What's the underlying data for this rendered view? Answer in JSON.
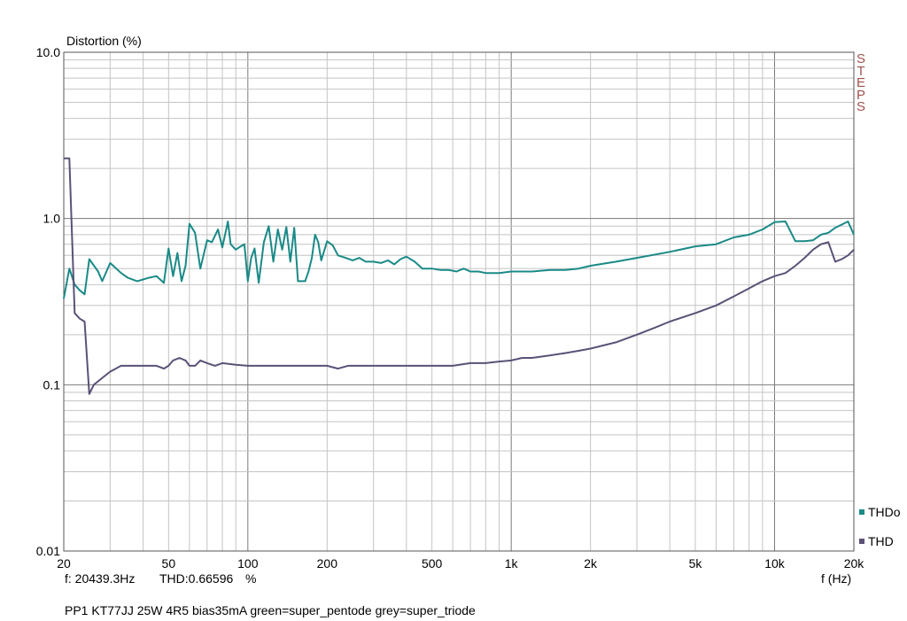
{
  "header": {
    "ylabel": "Distortion (%)"
  },
  "brand": {
    "text": "STEPS",
    "color": "#a0524d"
  },
  "readout": {
    "freq": "f: 20439.3Hz",
    "thd": "THD:0.66596",
    "unit": "%"
  },
  "caption": "PP1 KT77JJ 25W 4R5 bias35mA green=super_pentode grey=super_triode",
  "legend": [
    {
      "name": "THDo",
      "color": "#1a8a87"
    },
    {
      "name": "THD",
      "color": "#5b5177"
    }
  ],
  "chart_data": {
    "type": "line",
    "xlabel": "f (Hz)",
    "ylabel": "Distortion (%)",
    "xscale": "log",
    "yscale": "log",
    "xlim": [
      20,
      20000
    ],
    "ylim": [
      0.01,
      10
    ],
    "grid": true,
    "legend_position": "bottom-right",
    "x_ticks": [
      "20",
      "50",
      "100",
      "200",
      "500",
      "1k",
      "2k",
      "5k",
      "10k",
      "20k"
    ],
    "y_ticks": [
      "10.0",
      "1.0",
      "0.1",
      "0.01"
    ],
    "series": [
      {
        "name": "THDo",
        "color": "#1a8a87",
        "x": [
          20,
          21,
          22,
          23,
          24,
          25,
          27,
          28,
          30,
          33,
          35,
          38,
          40,
          42,
          45,
          48,
          50,
          52,
          54,
          56,
          58,
          60,
          63,
          66,
          70,
          73,
          77,
          80,
          84,
          86,
          90,
          94,
          97,
          100,
          103,
          106,
          110,
          115,
          120,
          125,
          130,
          135,
          140,
          145,
          150,
          155,
          160,
          165,
          170,
          175,
          180,
          185,
          190,
          200,
          210,
          220,
          235,
          250,
          265,
          280,
          300,
          320,
          340,
          360,
          380,
          400,
          430,
          460,
          500,
          540,
          580,
          620,
          660,
          700,
          750,
          800,
          900,
          1000,
          1100,
          1200,
          1400,
          1600,
          1800,
          2000,
          2500,
          3000,
          4000,
          5000,
          6000,
          7000,
          8000,
          9000,
          10000,
          11000,
          12000,
          13000,
          14000,
          15000,
          16000,
          17000,
          18000,
          19000,
          20000
        ],
        "values": [
          0.33,
          0.5,
          0.4,
          0.37,
          0.35,
          0.57,
          0.48,
          0.42,
          0.54,
          0.47,
          0.44,
          0.42,
          0.43,
          0.44,
          0.45,
          0.41,
          0.66,
          0.45,
          0.62,
          0.42,
          0.52,
          0.93,
          0.82,
          0.5,
          0.74,
          0.72,
          0.86,
          0.67,
          0.96,
          0.7,
          0.65,
          0.68,
          0.7,
          0.42,
          0.58,
          0.66,
          0.41,
          0.72,
          0.9,
          0.55,
          0.86,
          0.65,
          0.89,
          0.55,
          0.88,
          0.42,
          0.42,
          0.42,
          0.48,
          0.58,
          0.8,
          0.72,
          0.56,
          0.73,
          0.69,
          0.6,
          0.58,
          0.56,
          0.58,
          0.55,
          0.55,
          0.54,
          0.56,
          0.53,
          0.57,
          0.59,
          0.55,
          0.5,
          0.5,
          0.49,
          0.49,
          0.48,
          0.5,
          0.48,
          0.48,
          0.47,
          0.47,
          0.48,
          0.48,
          0.48,
          0.49,
          0.49,
          0.5,
          0.52,
          0.55,
          0.58,
          0.63,
          0.68,
          0.7,
          0.77,
          0.8,
          0.86,
          0.95,
          0.96,
          0.73,
          0.73,
          0.74,
          0.8,
          0.82,
          0.88,
          0.92,
          0.96,
          0.8
        ]
      },
      {
        "name": "THD",
        "color": "#5b5177",
        "x": [
          20,
          21,
          22,
          23,
          24,
          25,
          26,
          27,
          28,
          30,
          33,
          35,
          38,
          40,
          45,
          48,
          50,
          52,
          55,
          58,
          60,
          63,
          66,
          70,
          75,
          80,
          90,
          100,
          110,
          120,
          130,
          140,
          150,
          170,
          200,
          220,
          240,
          260,
          300,
          340,
          380,
          400,
          450,
          500,
          600,
          700,
          800,
          900,
          1000,
          1100,
          1200,
          1400,
          1600,
          1800,
          2000,
          2500,
          3000,
          3500,
          4000,
          5000,
          6000,
          7000,
          8000,
          9000,
          10000,
          11000,
          12000,
          13000,
          14000,
          15000,
          16000,
          17000,
          18000,
          19000,
          20000
        ],
        "values": [
          2.3,
          2.3,
          0.27,
          0.25,
          0.24,
          0.088,
          0.1,
          0.105,
          0.11,
          0.12,
          0.13,
          0.13,
          0.13,
          0.13,
          0.13,
          0.125,
          0.13,
          0.14,
          0.145,
          0.14,
          0.13,
          0.13,
          0.14,
          0.135,
          0.13,
          0.135,
          0.132,
          0.13,
          0.13,
          0.13,
          0.13,
          0.13,
          0.13,
          0.13,
          0.13,
          0.125,
          0.13,
          0.13,
          0.13,
          0.13,
          0.13,
          0.13,
          0.13,
          0.13,
          0.13,
          0.135,
          0.135,
          0.138,
          0.14,
          0.145,
          0.145,
          0.15,
          0.155,
          0.16,
          0.165,
          0.18,
          0.2,
          0.22,
          0.24,
          0.27,
          0.3,
          0.34,
          0.38,
          0.42,
          0.45,
          0.47,
          0.52,
          0.58,
          0.65,
          0.7,
          0.72,
          0.55,
          0.57,
          0.6,
          0.65
        ]
      }
    ]
  }
}
